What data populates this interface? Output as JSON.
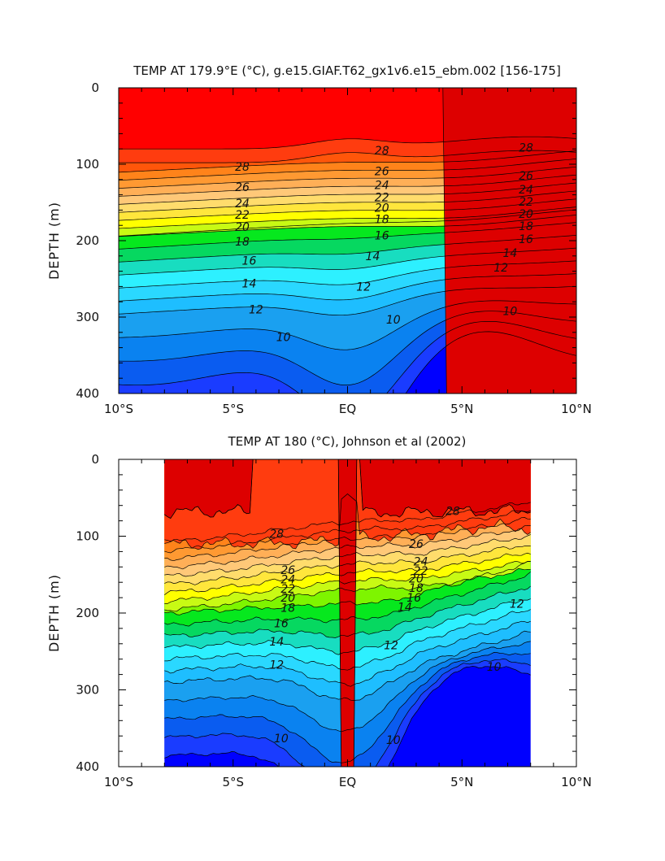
{
  "chart_data": [
    {
      "type": "heatmap",
      "subtype": "filled-contour",
      "title": "TEMP AT 179.9°E (°C), g.e15.GIAF.T62_gx1v6.e15_ebm.002 [156-175]",
      "xlabel": "",
      "ylabel": "DEPTH (m)",
      "xlim": [
        -10,
        10
      ],
      "ylim": [
        400,
        0
      ],
      "x_ticks": [
        {
          "value": -10,
          "label": "10°S"
        },
        {
          "value": -5,
          "label": "5°S"
        },
        {
          "value": 0,
          "label": "EQ"
        },
        {
          "value": 5,
          "label": "5°N"
        },
        {
          "value": 10,
          "label": "10°N"
        }
      ],
      "y_ticks": [
        {
          "value": 0,
          "label": "0"
        },
        {
          "value": 100,
          "label": "100"
        },
        {
          "value": 200,
          "label": "200"
        },
        {
          "value": 300,
          "label": "300"
        },
        {
          "value": 400,
          "label": "400"
        }
      ],
      "data_xrange": [
        -10,
        10
      ],
      "grid": false,
      "contour_interval": 1,
      "contour_labels": [
        {
          "text": "28",
          "x": -4.6,
          "y": 103
        },
        {
          "text": "26",
          "x": -4.6,
          "y": 130
        },
        {
          "text": "24",
          "x": -4.6,
          "y": 151
        },
        {
          "text": "22",
          "x": -4.6,
          "y": 166
        },
        {
          "text": "20",
          "x": -4.6,
          "y": 182
        },
        {
          "text": "18",
          "x": -4.6,
          "y": 201
        },
        {
          "text": "16",
          "x": -4.3,
          "y": 226
        },
        {
          "text": "14",
          "x": -4.3,
          "y": 256
        },
        {
          "text": "12",
          "x": -4.0,
          "y": 290
        },
        {
          "text": "10",
          "x": -2.8,
          "y": 326
        },
        {
          "text": "28",
          "x": 1.5,
          "y": 82
        },
        {
          "text": "26",
          "x": 1.5,
          "y": 109
        },
        {
          "text": "24",
          "x": 1.5,
          "y": 127
        },
        {
          "text": "22",
          "x": 1.5,
          "y": 143
        },
        {
          "text": "20",
          "x": 1.5,
          "y": 157
        },
        {
          "text": "18",
          "x": 1.5,
          "y": 172
        },
        {
          "text": "16",
          "x": 1.5,
          "y": 193
        },
        {
          "text": "14",
          "x": 1.1,
          "y": 220
        },
        {
          "text": "12",
          "x": 0.7,
          "y": 260
        },
        {
          "text": "10",
          "x": 2.0,
          "y": 303
        },
        {
          "text": "28",
          "x": 7.8,
          "y": 78
        },
        {
          "text": "26",
          "x": 7.8,
          "y": 115
        },
        {
          "text": "24",
          "x": 7.8,
          "y": 133
        },
        {
          "text": "22",
          "x": 7.8,
          "y": 149
        },
        {
          "text": "20",
          "x": 7.8,
          "y": 165
        },
        {
          "text": "18",
          "x": 7.8,
          "y": 181
        },
        {
          "text": "16",
          "x": 7.8,
          "y": 198
        },
        {
          "text": "14",
          "x": 7.1,
          "y": 216
        },
        {
          "text": "12",
          "x": 6.7,
          "y": 235
        },
        {
          "text": "10",
          "x": 7.1,
          "y": 292
        }
      ]
    },
    {
      "type": "heatmap",
      "subtype": "filled-contour",
      "title": "TEMP AT 180 (°C), Johnson et al (2002)",
      "xlabel": "",
      "ylabel": "DEPTH (m)",
      "xlim": [
        -10,
        10
      ],
      "ylim": [
        400,
        0
      ],
      "x_ticks": [
        {
          "value": -10,
          "label": "10°S"
        },
        {
          "value": -5,
          "label": "5°S"
        },
        {
          "value": 0,
          "label": "EQ"
        },
        {
          "value": 5,
          "label": "5°N"
        },
        {
          "value": 10,
          "label": "10°N"
        }
      ],
      "y_ticks": [
        {
          "value": 0,
          "label": "0"
        },
        {
          "value": 100,
          "label": "100"
        },
        {
          "value": 200,
          "label": "200"
        },
        {
          "value": 300,
          "label": "300"
        },
        {
          "value": 400,
          "label": "400"
        }
      ],
      "data_xrange": [
        -8,
        8
      ],
      "grid": false,
      "contour_interval": 1,
      "contour_labels": [
        {
          "text": "28",
          "x": -3.1,
          "y": 97
        },
        {
          "text": "26",
          "x": -2.6,
          "y": 144
        },
        {
          "text": "24",
          "x": -2.6,
          "y": 156
        },
        {
          "text": "22",
          "x": -2.6,
          "y": 168
        },
        {
          "text": "20",
          "x": -2.6,
          "y": 180
        },
        {
          "text": "18",
          "x": -2.6,
          "y": 193
        },
        {
          "text": "16",
          "x": -2.9,
          "y": 213
        },
        {
          "text": "14",
          "x": -3.1,
          "y": 237
        },
        {
          "text": "12",
          "x": -3.1,
          "y": 267
        },
        {
          "text": "10",
          "x": -2.9,
          "y": 363
        },
        {
          "text": "28",
          "x": 4.6,
          "y": 67
        },
        {
          "text": "26",
          "x": 3.0,
          "y": 110
        },
        {
          "text": "24",
          "x": 3.2,
          "y": 133
        },
        {
          "text": "22",
          "x": 3.2,
          "y": 145
        },
        {
          "text": "20",
          "x": 3.0,
          "y": 155
        },
        {
          "text": "18",
          "x": 3.0,
          "y": 167
        },
        {
          "text": "16",
          "x": 2.9,
          "y": 180
        },
        {
          "text": "14",
          "x": 2.5,
          "y": 192
        },
        {
          "text": "12",
          "x": 1.9,
          "y": 242
        },
        {
          "text": "12",
          "x": 7.4,
          "y": 188
        },
        {
          "text": "10",
          "x": 2.0,
          "y": 365
        },
        {
          "text": "10",
          "x": 6.4,
          "y": 270
        }
      ]
    }
  ],
  "colorscale": {
    "levels": [
      7,
      8,
      9,
      10,
      11,
      12,
      13,
      14,
      15,
      16,
      17,
      18,
      19,
      20,
      21,
      22,
      23,
      24,
      25,
      26,
      27,
      28,
      29,
      30
    ],
    "colors": [
      "#0000ff",
      "#1a3cff",
      "#0a5cf0",
      "#0a82f0",
      "#1aa0f0",
      "#1ebeff",
      "#2ad8ff",
      "#2df0ff",
      "#18ddc0",
      "#06d860",
      "#06e81e",
      "#7ef500",
      "#c8fa14",
      "#ffff00",
      "#ffe63c",
      "#ffdc6c",
      "#ffc878",
      "#ffaf57",
      "#ff9932",
      "#ff831a",
      "#ff560a",
      "#ff3c0f",
      "#ff0000",
      "#dd0000"
    ]
  }
}
